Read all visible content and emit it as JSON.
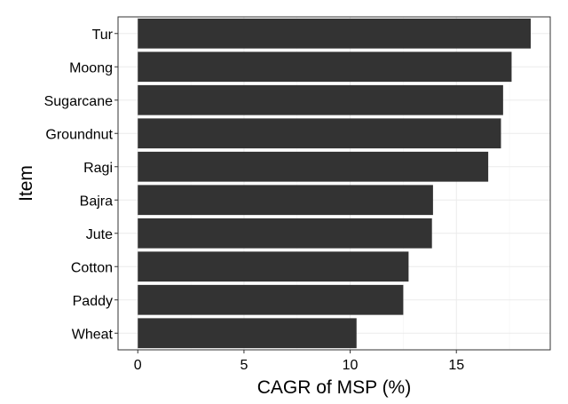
{
  "chart_data": {
    "type": "bar",
    "orientation": "horizontal",
    "categories": [
      "Wheat",
      "Paddy",
      "Cotton",
      "Jute",
      "Bajra",
      "Ragi",
      "Groundnut",
      "Sugarcane",
      "Moong",
      "Tur"
    ],
    "values": [
      10.3,
      12.5,
      12.75,
      13.85,
      13.9,
      16.5,
      17.1,
      17.2,
      17.6,
      18.5
    ],
    "title": "",
    "xlabel": "CAGR of MSP (%)",
    "ylabel": "Item",
    "xlim": [
      -0.93,
      19.42
    ],
    "xticks": [
      0,
      5,
      10,
      15
    ],
    "xtick_labels": [
      "0",
      "5",
      "10",
      "15"
    ],
    "grid": true,
    "legend": "none",
    "colors": {
      "bar": "#333333",
      "grid": "#ebebeb",
      "panel_border": "#333333",
      "background": "#ffffff"
    }
  }
}
